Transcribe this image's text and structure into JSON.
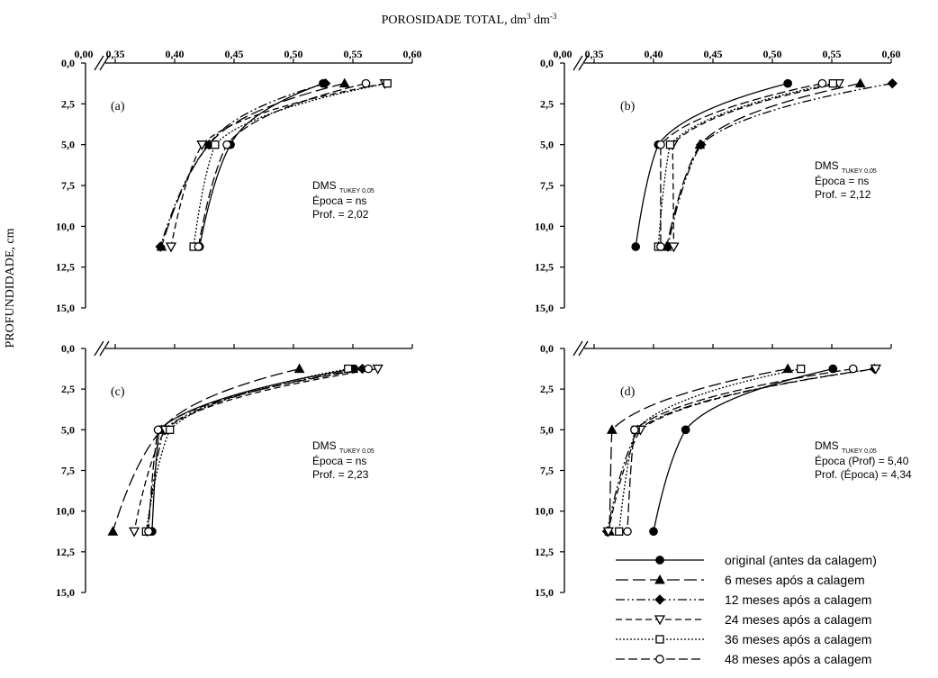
{
  "figure": {
    "top_title": "POROSIDADE TOTAL, dm",
    "top_title_sup1": "3",
    "top_title_mid": " dm",
    "top_title_sup2": "-3",
    "ylabel": "PROFUNDIDADE, cm"
  },
  "chart_data": {
    "type": "line",
    "x_ticks": [
      "0,00",
      "0,35",
      "0,40",
      "0,45",
      "0,50",
      "0,55",
      "0,60"
    ],
    "y_ticks": [
      "0,0",
      "2,5",
      "5,0",
      "7,5",
      "10,0",
      "12,5",
      "15,0"
    ],
    "xlim": [
      0.325,
      0.6
    ],
    "ylim": [
      0,
      15
    ],
    "axis_break": true,
    "depths": [
      1.25,
      5.0,
      11.25
    ],
    "series_names": [
      "original (antes da calagem)",
      "6 meses após a calagem",
      "12 meses após a calagem",
      "24 meses após a calagem",
      "36 meses após a calagem",
      "48 meses após a calagem"
    ],
    "series_styles": [
      {
        "marker": "circle-filled",
        "dash": ""
      },
      {
        "marker": "triangle-filled",
        "dash": "14 5"
      },
      {
        "marker": "diamond-filled",
        "dash": "10 3 2 3 2 3"
      },
      {
        "marker": "triangle-down-open",
        "dash": "7 4"
      },
      {
        "marker": "square-open",
        "dash": "2 2"
      },
      {
        "marker": "circle-open",
        "dash": "10 4"
      }
    ],
    "legend_position": "bottom-right",
    "panels": [
      {
        "label": "(a)",
        "stats": {
          "title": "DMS",
          "sub": "TUKEY 0,05",
          "line1": "Época = ns",
          "line2": "Prof. = 2,02"
        },
        "series": [
          {
            "name": "original (antes da calagem)",
            "x": [
              0.525,
              0.447,
              0.421
            ]
          },
          {
            "name": "6 meses após a calagem",
            "x": [
              0.543,
              0.429,
              0.389
            ]
          },
          {
            "name": "12 meses após a calagem",
            "x": [
              0.527,
              0.429,
              0.388
            ]
          },
          {
            "name": "24 meses após a calagem",
            "x": [
              0.577,
              0.423,
              0.397
            ]
          },
          {
            "name": "36 meses após a calagem",
            "x": [
              0.579,
              0.434,
              0.416
            ]
          },
          {
            "name": "48 meses após a calagem",
            "x": [
              0.561,
              0.444,
              0.42
            ]
          }
        ]
      },
      {
        "label": "(b)",
        "stats": {
          "title": "DMS",
          "sub": "TUKEY 0,05",
          "line1": "Época = ns",
          "line2": "Prof. = 2,12"
        },
        "series": [
          {
            "name": "original (antes da calagem)",
            "x": [
              0.513,
              0.404,
              0.385
            ]
          },
          {
            "name": "6 meses após a calagem",
            "x": [
              0.574,
              0.439,
              0.411
            ]
          },
          {
            "name": "12 meses após a calagem",
            "x": [
              0.601,
              0.44,
              0.412
            ]
          },
          {
            "name": "24 meses após a calagem",
            "x": [
              0.556,
              0.416,
              0.417
            ]
          },
          {
            "name": "36 meses após a calagem",
            "x": [
              0.551,
              0.414,
              0.404
            ]
          },
          {
            "name": "48 meses após a calagem",
            "x": [
              0.542,
              0.406,
              0.406
            ]
          }
        ]
      },
      {
        "label": "(c)",
        "stats": {
          "title": "DMS",
          "sub": "TUKEY 0,05",
          "line1": "Época = ns",
          "line2": "Prof. = 2,23"
        },
        "series": [
          {
            "name": "original (antes da calagem)",
            "x": [
              0.551,
              0.387,
              0.381
            ]
          },
          {
            "name": "6 meses após a calagem",
            "x": [
              0.505,
              0.389,
              0.348
            ]
          },
          {
            "name": "12 meses após a calagem",
            "x": [
              0.558,
              0.391,
              0.377
            ]
          },
          {
            "name": "24 meses após a calagem",
            "x": [
              0.571,
              0.392,
              0.366
            ]
          },
          {
            "name": "36 meses após a calagem",
            "x": [
              0.546,
              0.396,
              0.376
            ]
          },
          {
            "name": "48 meses após a calagem",
            "x": [
              0.563,
              0.386,
              0.378
            ]
          }
        ]
      },
      {
        "label": "(d)",
        "stats": {
          "title": "DMS",
          "sub": "TUKEY 0,05",
          "line1": "Época (Prof) = 5,40",
          "line2": "Prof. (Época) = 4,34"
        },
        "series": [
          {
            "name": "original (antes da calagem)",
            "x": [
              0.551,
              0.427,
              0.4
            ]
          },
          {
            "name": "6 meses após a calagem",
            "x": [
              0.513,
              0.365,
              0.363
            ]
          },
          {
            "name": "12 meses após a calagem",
            "x": [
              0.586,
              0.387,
              0.361
            ]
          },
          {
            "name": "24 meses após a calagem",
            "x": [
              0.587,
              0.389,
              0.362
            ]
          },
          {
            "name": "36 meses após a calagem",
            "x": [
              0.524,
              0.385,
              0.371
            ]
          },
          {
            "name": "48 meses após a calagem",
            "x": [
              0.568,
              0.384,
              0.378
            ]
          }
        ]
      }
    ]
  }
}
